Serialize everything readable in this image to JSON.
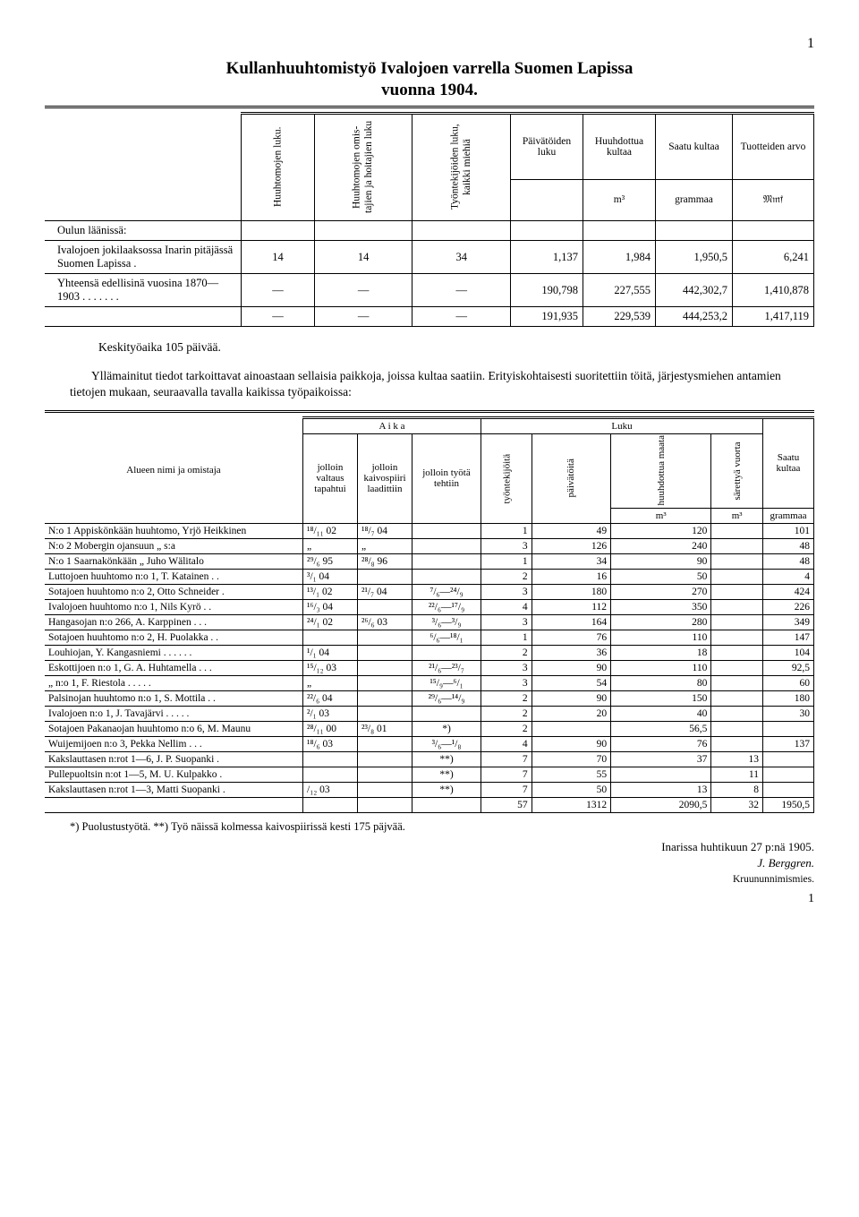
{
  "page_top_number": "1",
  "title_line1": "Kullanhuuhtomistyö Ivalojoen varrella Suomen Lapissa",
  "title_line2": "vuonna 1904.",
  "table1": {
    "headers": {
      "col2": "Huuhtomojen luku.",
      "col3": "Huuhtomojen omis­tajien ja hoitajien luku",
      "col4": "Työntekijöiden luku, kaikki miehiä",
      "col5_top": "Päivä­töiden luku",
      "col6_top": "Huuhdot­tua kul­taa",
      "col7_top": "Saatu kul­taa",
      "col8_top": "Tuottei­den arvo",
      "col6_sub": "m³",
      "col7_sub": "grammaa",
      "col8_sub": "𝔐𝔪𝔣"
    },
    "section_label": "Oulun läänissä:",
    "rows": [
      {
        "label": "Ivalojoen jokilaaksossa Inarin pitäjässä Suomen Lapissa  .",
        "c2": "14",
        "c3": "14",
        "c4": "34",
        "c5": "1,137",
        "c6": "1,984",
        "c7": "1,950,5",
        "c8": "6,241"
      },
      {
        "label": "Yhteensä edellisinä vuosina 1870—1903 .  .  .  .  .  .  .",
        "c2": "—",
        "c3": "—",
        "c4": "—",
        "c5": "190,798",
        "c6": "227,555",
        "c7": "442,302,7",
        "c8": "1,410,878"
      },
      {
        "label": "",
        "c2": "—",
        "c3": "—",
        "c4": "—",
        "c5": "191,935",
        "c6": "229,539",
        "c7": "444,253,2",
        "c8": "1,417,119"
      }
    ],
    "keskity": "Keskityöaika 105 päivää."
  },
  "paragraph": "Yllämainitut tiedot tarkoittavat ainoastaan sellaisia paikkoja, joissa kultaa saatiin. Erityiskohtaisesti suoritettiin töitä, järjestysmiehen antamien tietojen mukaan, seuraavalla tavalla kaikissa työpaikoissa:",
  "table2": {
    "headers": {
      "rowhead": "Alueen nimi ja omistaja",
      "aika": "A i k a",
      "luku": "Luku",
      "jolloin_valtaus": "jolloin valtaus tapah­tui",
      "jolloin_kaivos": "jolloin kaivos­piiri laadit­tiin",
      "jolloin_tyota": "jolloin työtä teh­tiin",
      "tyontekijoita": "työntekijöitä",
      "paivatoita": "päivätöitä",
      "huuhdottua": "huuhdottua maata",
      "sarettya": "särettyä vuorta",
      "saatu": "Saatu kultaa",
      "unit_m3": "m³",
      "unit_m3b": "m³",
      "gram": "gram­maa"
    },
    "rows": [
      {
        "label": "N:o 1 Appiskönkään huuhtomo, Yrjö Heikkinen",
        "a": "¹⁸/₁₁ 02",
        "b": "¹⁸/₇ 04",
        "c": "",
        "d": "1",
        "e": "49",
        "f": "120",
        "g": "",
        "h": "101"
      },
      {
        "label": "N:o 2 Mobergin ojansuun   „        s:a",
        "a": "„",
        "b": "„",
        "c": "",
        "d": "3",
        "e": "126",
        "f": "240",
        "g": "",
        "h": "48"
      },
      {
        "label": "N:o 1 Saarnakönkään     „   Juho Wälitalo",
        "a": "²⁹/₆ 95",
        "b": "²⁸/₈ 96",
        "c": "",
        "d": "1",
        "e": "34",
        "f": "90",
        "g": "",
        "h": "48"
      },
      {
        "label": "Luttojoen huuhtomo n:o 1, T. Katainen .  .",
        "a": "³/₁ 04",
        "b": "",
        "c": "",
        "d": "2",
        "e": "16",
        "f": "50",
        "g": "",
        "h": "4"
      },
      {
        "label": "Sotajoen huuhtomo n:o 2, Otto Schneider  .",
        "a": "¹³/₁ 02",
        "b": "²¹/₇ 04",
        "c": "⁷/₆—²⁴/₉",
        "d": "3",
        "e": "180",
        "f": "270",
        "g": "",
        "h": "424"
      },
      {
        "label": "Ivalojoen huuhtomo n:o 1, Nils Kyrö  .  .",
        "a": "¹⁶/₃ 04",
        "b": "",
        "c": "²²/₆—¹⁷/₉",
        "d": "4",
        "e": "112",
        "f": "350",
        "g": "",
        "h": "226"
      },
      {
        "label": "Hangasojan n:o 266, A. Karppinen  .  .  .",
        "a": "²⁴/₁ 02",
        "b": "²⁶/₆ 03",
        "c": "³/₆—³/₉",
        "d": "3",
        "e": "164",
        "f": "280",
        "g": "",
        "h": "349"
      },
      {
        "label": "Sotajoen huuhtomo n:o 2, H. Puolakka .  .",
        "a": "",
        "b": "",
        "c": "⁶/₆—¹⁸/₁",
        "d": "1",
        "e": "76",
        "f": "110",
        "g": "",
        "h": "147"
      },
      {
        "label": "Louhiojan, Y. Kangasniemi .  .  .  .  .  .",
        "a": "¹/₁ 04",
        "b": "",
        "c": "",
        "d": "2",
        "e": "36",
        "f": "18",
        "g": "",
        "h": "104"
      },
      {
        "label": "Eskottijoen n:o 1, G. A. Huhtamella .  .  .",
        "a": "¹⁵/₁₂ 03",
        "b": "",
        "c": "²¹/₆—²³/₇",
        "d": "3",
        "e": "90",
        "f": "110",
        "g": "",
        "h": "92,5"
      },
      {
        "label": "      „      n:o 1, F. Riestola .  .  .  .  .",
        "a": "„",
        "b": "",
        "c": "¹⁵/₉—⁶/₁",
        "d": "3",
        "e": "54",
        "f": "80",
        "g": "",
        "h": "60"
      },
      {
        "label": "Palsinojan huuhtomo n:o 1, S. Mottila .  .",
        "a": "²²/₆ 04",
        "b": "",
        "c": "²⁹/₆—¹⁴/₉",
        "d": "2",
        "e": "90",
        "f": "150",
        "g": "",
        "h": "180"
      },
      {
        "label": "Ivalojoen n:o 1, J. Tavajärvi  .  .  .  .  .",
        "a": "²/₁ 03",
        "b": "",
        "c": "",
        "d": "2",
        "e": "20",
        "f": "40",
        "g": "",
        "h": "30"
      },
      {
        "label": "Sotajoen Pakanaojan huuhtomo n:o 6, M. Maunu",
        "a": "²⁸/₁₁ 00",
        "b": "²³/₈ 01",
        "c": "*)",
        "d": "2",
        "e": "",
        "f": "56,5",
        "g": "",
        "h": ""
      },
      {
        "label": "Wuijemijoen n:o 3, Pekka Nellim .  .  .",
        "a": "¹⁸/₆ 03",
        "b": "",
        "c": "³/₆—¹/₈",
        "d": "4",
        "e": "90",
        "f": "76",
        "g": "",
        "h": "137"
      },
      {
        "label": "Kakslauttasen n:rot 1—6, J. P. Suopanki  .",
        "a": "",
        "b": "",
        "c": "**)",
        "d": "7",
        "e": "70",
        "f": "37",
        "g": "13",
        "h": ""
      },
      {
        "label": "Pullepuoltsin n:ot 1—5, M. U. Kulpakko  .",
        "a": "",
        "b": "",
        "c": "**)",
        "d": "7",
        "e": "55",
        "f": "",
        "g": "11",
        "h": ""
      },
      {
        "label": "Kakslauttasen n:rot 1—3, Matti Suopanki  .",
        "a": "/₁₂ 03",
        "b": "",
        "c": "**)",
        "d": "7",
        "e": "50",
        "f": "13",
        "g": "8",
        "h": ""
      }
    ],
    "totals": {
      "d": "57",
      "e": "1312",
      "f": "2090,5",
      "g": "32",
      "h": "1950,5"
    }
  },
  "footnote": "*) Puolustustyötä.  **) Työ näissä kolmessa kaivospiirissä kesti 175 päjvää.",
  "closing_place_date": "Inarissa huhtikuun 27 p:nä 1905.",
  "signature_name": "J. Berggren.",
  "signature_title": "Kruununnimismies.",
  "page_bottom_number": "1"
}
